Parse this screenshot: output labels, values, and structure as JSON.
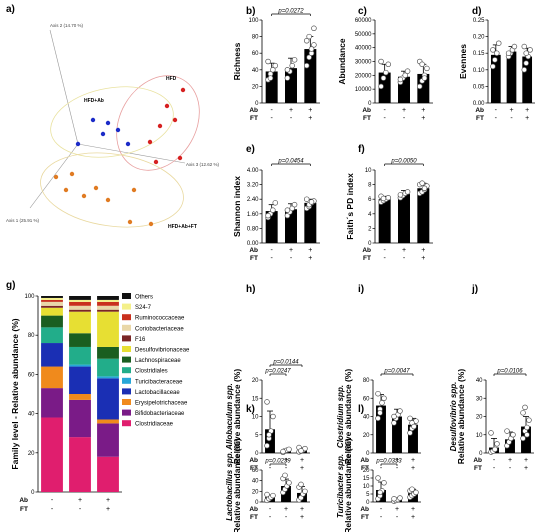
{
  "figure_labels": [
    "a)",
    "b)",
    "c)",
    "d)",
    "e)",
    "f)",
    "g)",
    "h)",
    "i)",
    "j)",
    "k)",
    "l)"
  ],
  "row_labels": [
    "Ab",
    "FT"
  ],
  "col_signs": [
    [
      "-",
      "+",
      "+"
    ],
    [
      "-",
      "-",
      "+"
    ]
  ],
  "colors": {
    "hfd": "#d62020",
    "hfd_ab": "#1b2bc8",
    "hfd_ab_ft": "#e07b22",
    "hfd_ellipse": "#e8a0a0",
    "hfd_ab_ellipse": "#e9e2a0",
    "hfd_ab_ft_ellipse": "#e9d9a0"
  },
  "chart_data": [
    {
      "panel": "a)",
      "type": "scatter",
      "axes": [
        "Axis 1 (25.91 %)",
        "Axis 2 (14.70 %)",
        "Axis 3 (12.62 %)"
      ],
      "groups": [
        {
          "name": "HFD",
          "color_key": "hfd"
        },
        {
          "name": "HFD+Ab",
          "color_key": "hfd_ab"
        },
        {
          "name": "HFD+Ab+FT",
          "color_key": "hfd_ab_ft"
        }
      ]
    },
    {
      "panel": "b)",
      "type": "bar",
      "ylabel": "Richness",
      "ylim": [
        0,
        100
      ],
      "yticks": [
        0,
        20,
        40,
        60,
        80,
        100
      ],
      "values": [
        38,
        42,
        65
      ],
      "errors": [
        10,
        12,
        15
      ],
      "points": [
        [
          28,
          35,
          40,
          45,
          50,
          30
        ],
        [
          30,
          38,
          45,
          52,
          40
        ],
        [
          45,
          55,
          60,
          70,
          75,
          80,
          65,
          90
        ]
      ],
      "brackets": [
        {
          "from": 0,
          "to": 2,
          "label": "p=0.0272"
        }
      ]
    },
    {
      "panel": "c)",
      "type": "bar",
      "ylabel": "Abundance",
      "ylim": [
        0,
        60000
      ],
      "yticks": [
        0,
        10000,
        20000,
        30000,
        40000,
        50000,
        60000
      ],
      "values": [
        22000,
        19000,
        21000
      ],
      "errors": [
        6000,
        4000,
        7000
      ],
      "points": [
        [
          12000,
          18000,
          22000,
          28000,
          30000
        ],
        [
          15000,
          18000,
          20000,
          23000,
          17000
        ],
        [
          12000,
          16000,
          20000,
          25000,
          30000,
          28000,
          18000
        ]
      ],
      "brackets": []
    },
    {
      "panel": "d)",
      "type": "bar",
      "ylabel": "Evennes",
      "ylim": [
        0,
        0.25
      ],
      "yticks": [
        0.0,
        0.05,
        0.1,
        0.15,
        0.2,
        0.25
      ],
      "values": [
        0.145,
        0.155,
        0.14
      ],
      "errors": [
        0.03,
        0.015,
        0.025
      ],
      "points": [
        [
          0.11,
          0.13,
          0.15,
          0.18,
          0.16
        ],
        [
          0.14,
          0.15,
          0.16,
          0.17,
          0.15
        ],
        [
          0.1,
          0.12,
          0.14,
          0.16,
          0.17,
          0.15
        ]
      ],
      "brackets": []
    },
    {
      "panel": "e)",
      "type": "bar",
      "ylabel": "Shannon index",
      "ylim": [
        0,
        4.0
      ],
      "yticks": [
        0,
        0.8,
        1.6,
        2.4,
        3.2,
        4.0
      ],
      "values": [
        1.75,
        1.85,
        2.2
      ],
      "errors": [
        0.35,
        0.3,
        0.2
      ],
      "points": [
        [
          1.4,
          1.6,
          1.8,
          2.2,
          1.5
        ],
        [
          1.5,
          1.7,
          1.9,
          2.1,
          1.8
        ],
        [
          1.9,
          2.0,
          2.2,
          2.3,
          2.4,
          2.1,
          2.25
        ]
      ],
      "brackets": [
        {
          "from": 0,
          "to": 2,
          "label": "p=0.0454"
        }
      ]
    },
    {
      "panel": "f)",
      "type": "bar",
      "ylabel": "Faith´s PD index",
      "ylim": [
        0,
        10
      ],
      "yticks": [
        0,
        2,
        4,
        6,
        8,
        10
      ],
      "values": [
        6.0,
        6.7,
        7.5
      ],
      "errors": [
        0.4,
        0.5,
        0.7
      ],
      "points": [
        [
          5.6,
          5.8,
          6.0,
          6.2,
          6.4,
          6.1
        ],
        [
          6.2,
          6.5,
          6.8,
          7.0,
          6.6
        ],
        [
          6.8,
          7.0,
          7.3,
          7.8,
          8.0,
          8.2,
          7.5
        ]
      ],
      "brackets": [
        {
          "from": 0,
          "to": 2,
          "label": "p=0.0050"
        }
      ]
    },
    {
      "panel": "g)",
      "type": "bar",
      "ylabel": "Family level - Relative abundance (%)",
      "ylim": [
        0,
        100
      ],
      "yticks": [
        0,
        20,
        40,
        60,
        80,
        100
      ],
      "legend": [
        "Others",
        "S24-7",
        "Ruminococcaceae",
        "Coriobacteriaceae",
        "F16",
        "Desulfovibrionaceae",
        "Lachnospiraceae",
        "Clostridiales",
        "Turicibacteraceae",
        "Lactobacillaceae",
        "Erysipelotrichaceae",
        "Bifidobacteriaceae",
        "Clostridiaceae"
      ],
      "legend_colors": [
        "#111111",
        "#f4f08a",
        "#c9301e",
        "#e9d7a8",
        "#7a2626",
        "#e7df33",
        "#1a5e20",
        "#22ad8a",
        "#27a7d8",
        "#1a2fb4",
        "#f08a1c",
        "#7a1b87",
        "#e01e6e"
      ],
      "stack_order_bottom_to_top": [
        "Clostridiaceae",
        "Bifidobacteriaceae",
        "Erysipelotrichaceae",
        "Lactobacillaceae",
        "Turicibacteraceae",
        "Clostridiales",
        "Lachnospiraceae",
        "Desulfovibrionaceae",
        "F16",
        "Coriobacteriaceae",
        "Ruminococcaceae",
        "S24-7",
        "Others"
      ],
      "stacks": [
        [
          38,
          15,
          11,
          12,
          0,
          8,
          6,
          4,
          1,
          2,
          1,
          1,
          1
        ],
        [
          28,
          19,
          3,
          14,
          1,
          9,
          7,
          11,
          1,
          2,
          2,
          1,
          2
        ],
        [
          18,
          17,
          2,
          21,
          1,
          9,
          6,
          18,
          1,
          2,
          2,
          1,
          2
        ]
      ]
    },
    {
      "panel": "h)",
      "type": "bar",
      "ylabel": "Allobaculum spp.",
      "ylabel2": "Relative abundance (%)",
      "ylim": [
        0,
        20
      ],
      "yticks": [
        0,
        5,
        10,
        15,
        20
      ],
      "values": [
        6.5,
        0.6,
        0.8
      ],
      "errors": [
        5.0,
        0.5,
        0.6
      ],
      "points": [
        [
          2,
          4,
          6,
          10,
          14,
          5
        ],
        [
          0.2,
          0.5,
          0.8,
          1.0,
          0.4
        ],
        [
          0.3,
          0.5,
          0.8,
          1.2,
          1.5,
          0.6
        ]
      ],
      "brackets": [
        {
          "from": 0,
          "to": 1,
          "label": "p=0.0247"
        },
        {
          "from": 0,
          "to": 2,
          "label": "p=0.0144"
        }
      ]
    },
    {
      "panel": "i)",
      "type": "bar",
      "ylabel": "Clostridium spp.",
      "ylabel2": "Relative abundance (%)",
      "ylim": [
        0,
        80
      ],
      "yticks": [
        0,
        20,
        40,
        60,
        80
      ],
      "values": [
        52,
        40,
        31
      ],
      "errors": [
        12,
        8,
        7
      ],
      "points": [
        [
          38,
          48,
          55,
          60,
          65,
          44
        ],
        [
          33,
          38,
          42,
          46,
          40
        ],
        [
          22,
          27,
          30,
          35,
          38,
          33,
          29
        ]
      ],
      "brackets": [
        {
          "from": 0,
          "to": 2,
          "label": "p=0.0047"
        }
      ]
    },
    {
      "panel": "j)",
      "type": "bar",
      "ylabel": "Desulfovibrio spp.",
      "ylabel2": "Relative abundance (%)",
      "ylim": [
        0,
        40
      ],
      "yticks": [
        0,
        10,
        20,
        30,
        40
      ],
      "values": [
        3.0,
        7.5,
        14.5
      ],
      "errors": [
        5.0,
        4.0,
        5.5
      ],
      "points": [
        [
          0.5,
          1.0,
          2.0,
          5.0,
          11.0
        ],
        [
          4.0,
          6.0,
          8.0,
          10.0,
          12.0
        ],
        [
          8.0,
          12.0,
          14.0,
          18.0,
          22.0,
          25.0,
          10.0
        ]
      ],
      "brackets": [
        {
          "from": 0,
          "to": 2,
          "label": "p=0.0106"
        }
      ]
    },
    {
      "panel": "k)",
      "type": "bar",
      "ylabel": "Lactobacillus spp.",
      "ylabel2": "Relative abundance (%)",
      "ylim": [
        0,
        60
      ],
      "yticks": [
        0,
        20,
        40,
        60
      ],
      "values": [
        9,
        30,
        17
      ],
      "errors": [
        4,
        13,
        12
      ],
      "points": [
        [
          3,
          6,
          9,
          12,
          14
        ],
        [
          18,
          24,
          30,
          36,
          44,
          50
        ],
        [
          4,
          8,
          15,
          20,
          28,
          33
        ]
      ],
      "brackets": [
        {
          "from": 0,
          "to": 1,
          "label": "p=0.0239"
        }
      ]
    },
    {
      "panel": "l)",
      "type": "bar",
      "ylabel": "Turicibacter spp.",
      "ylabel2": "Relative abundance (%)",
      "ylim": [
        0,
        20
      ],
      "yticks": [
        0,
        5,
        10,
        15,
        20
      ],
      "values": [
        7.5,
        1.5,
        5.5
      ],
      "errors": [
        5.0,
        1.0,
        2.5
      ],
      "points": [
        [
          2,
          4,
          7,
          12,
          15,
          6
        ],
        [
          0.5,
          1.0,
          1.5,
          2.5,
          2.0
        ],
        [
          3,
          4,
          5,
          6,
          7,
          8
        ]
      ],
      "brackets": [
        {
          "from": 0,
          "to": 1,
          "label": "p=0.0333"
        }
      ]
    }
  ]
}
